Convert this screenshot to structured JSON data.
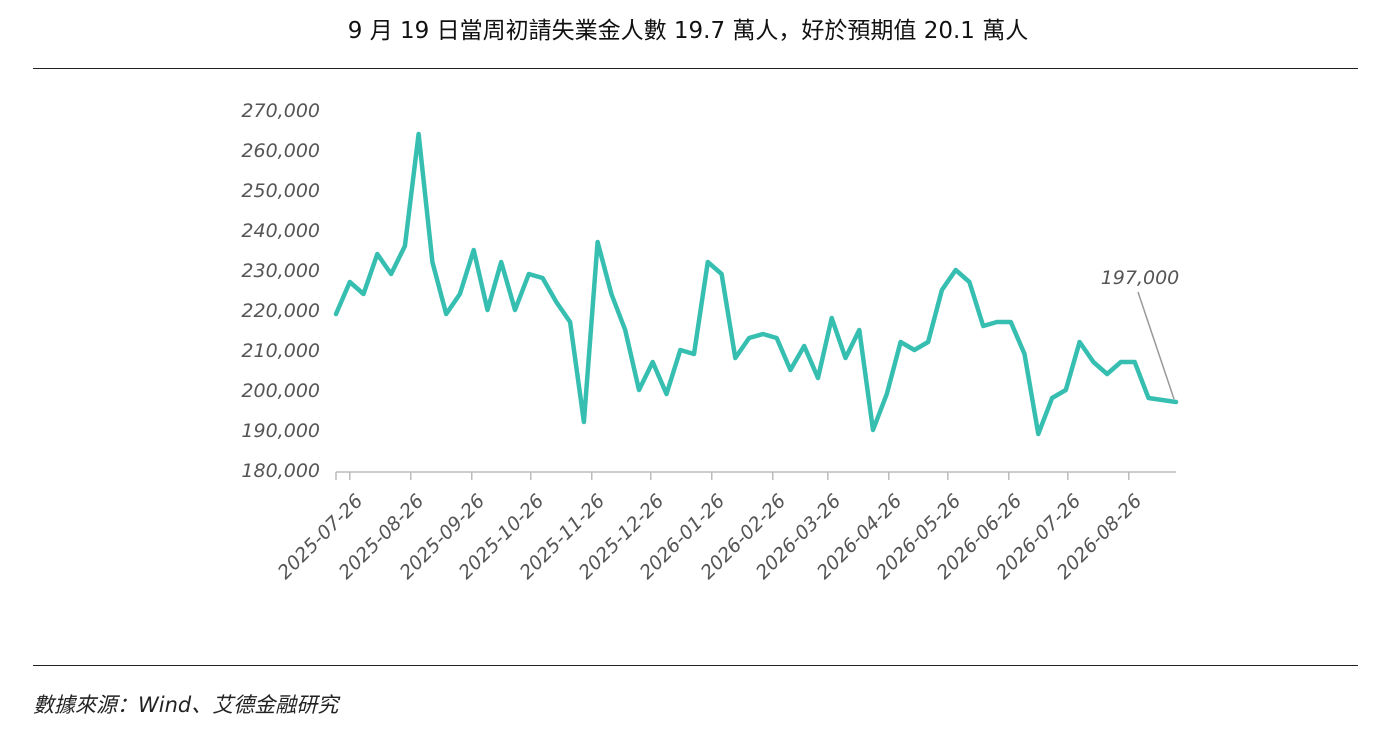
{
  "page": {
    "title": "9 月 19 日當周初請失業金人數 19.7 萬人，好於預期值 20.1 萬人",
    "source": "數據來源：Wind、艾德金融研究"
  },
  "colors": {
    "line": "#36bfb1",
    "axis": "#bbbbbb",
    "tick_text": "#555555",
    "annotation_leader": "#999999"
  },
  "chart_data": {
    "type": "line",
    "title": "9 月 19 日當周初請失業金人數 19.7 萬人，好於預期值 20.1 萬人",
    "xlabel": "",
    "ylabel": "",
    "ylim": [
      180000,
      270000
    ],
    "y_ticks": [
      180000,
      190000,
      200000,
      210000,
      220000,
      230000,
      240000,
      250000,
      260000,
      270000
    ],
    "y_tick_labels": [
      "180,000",
      "190,000",
      "200,000",
      "210,000",
      "220,000",
      "230,000",
      "240,000",
      "250,000",
      "260,000",
      "270,000"
    ],
    "x_start": "2025-07-19",
    "x_end": "2026-09-19",
    "x_ticks": [
      "2025-07-26",
      "2025-08-26",
      "2025-09-26",
      "2025-10-26",
      "2025-11-26",
      "2025-12-26",
      "2026-01-26",
      "2026-02-26",
      "2026-03-26",
      "2026-04-26",
      "2026-05-26",
      "2026-06-26",
      "2026-07-26",
      "2026-08-26"
    ],
    "grid": false,
    "legend": "none",
    "series": [
      {
        "x": [
          "2025-07-19",
          "2025-07-26",
          "2025-08-02",
          "2025-08-09",
          "2025-08-16",
          "2025-08-23",
          "2025-08-30",
          "2025-09-06",
          "2025-09-13",
          "2025-09-20",
          "2025-09-27",
          "2025-10-04",
          "2025-10-11",
          "2025-10-18",
          "2025-10-25",
          "2025-11-01",
          "2025-11-08",
          "2025-11-15",
          "2025-11-22",
          "2025-11-29",
          "2025-12-06",
          "2025-12-13",
          "2025-12-20",
          "2025-12-27",
          "2026-01-03",
          "2026-01-10",
          "2026-01-17",
          "2026-01-24",
          "2026-01-31",
          "2026-02-07",
          "2026-02-14",
          "2026-02-21",
          "2026-02-28",
          "2026-03-07",
          "2026-03-14",
          "2026-03-21",
          "2026-03-28",
          "2026-04-04",
          "2026-04-11",
          "2026-04-18",
          "2026-04-25",
          "2026-05-02",
          "2026-05-09",
          "2026-05-16",
          "2026-05-23",
          "2026-05-30",
          "2026-06-06",
          "2026-06-13",
          "2026-06-20",
          "2026-06-27",
          "2026-07-04",
          "2026-07-11",
          "2026-07-18",
          "2026-07-25",
          "2026-08-01",
          "2026-08-08",
          "2026-08-15",
          "2026-08-22",
          "2026-08-29",
          "2026-09-05",
          "2026-09-12",
          "2026-09-19"
        ],
        "values": [
          219000,
          227000,
          224000,
          234000,
          229000,
          236000,
          264000,
          232000,
          219000,
          224000,
          235000,
          220000,
          232000,
          220000,
          229000,
          228000,
          222000,
          217000,
          192000,
          237000,
          224000,
          215000,
          200000,
          207000,
          199000,
          210000,
          209000,
          232000,
          229000,
          208000,
          213000,
          214000,
          213000,
          205000,
          211000,
          203000,
          218000,
          208000,
          215000,
          190000,
          199000,
          212000,
          210000,
          212000,
          225000,
          230000,
          227000,
          216000,
          217000,
          217000,
          209000,
          189000,
          198000,
          200000,
          212000,
          207000,
          204000,
          207000,
          207000,
          198000,
          197500,
          197000
        ]
      }
    ],
    "annotations": [
      {
        "text": "197,000",
        "x": "2026-09-19",
        "y": 197000
      }
    ]
  }
}
